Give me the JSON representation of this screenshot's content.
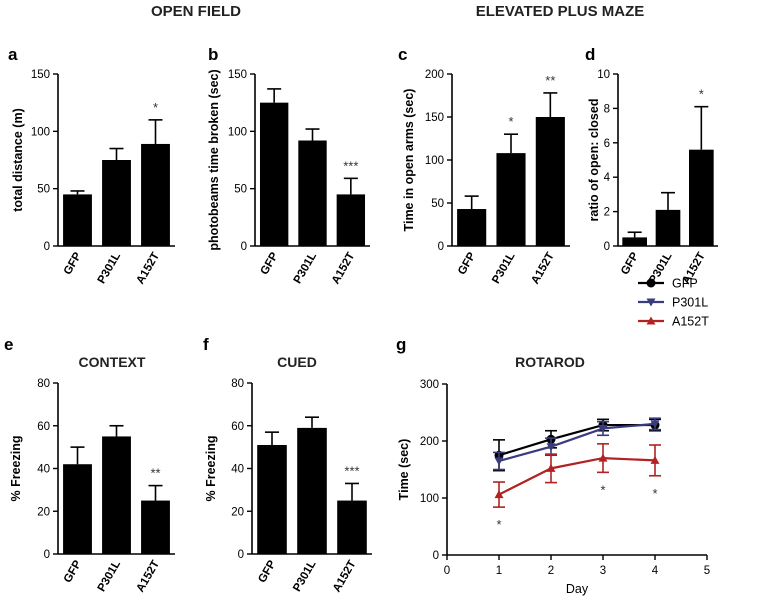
{
  "section_headers": {
    "open_field": "OPEN FIELD",
    "epm": "ELEVATED PLUS MAZE"
  },
  "colors": {
    "bar": "#000000",
    "gfp": "#000000",
    "p301l": "#3a3a7e",
    "a152t": "#b22222"
  },
  "chart_data": [
    {
      "id": "a",
      "panel_label": "a",
      "type": "bar",
      "title": "",
      "ylabel": "total distance (m)",
      "ylim": [
        0,
        150
      ],
      "yticks": [
        0,
        50,
        100,
        150
      ],
      "categories": [
        "GFP",
        "P301L",
        "A152T"
      ],
      "values": [
        45,
        75,
        89
      ],
      "errors": [
        3,
        10,
        21
      ],
      "significance": [
        "",
        "",
        "*"
      ]
    },
    {
      "id": "b",
      "panel_label": "b",
      "type": "bar",
      "title": "",
      "ylabel": "photobeams time broken (sec)",
      "ylim": [
        0,
        150
      ],
      "yticks": [
        0,
        50,
        100,
        150
      ],
      "categories": [
        "GFP",
        "P301L",
        "A152T"
      ],
      "values": [
        125,
        92,
        45
      ],
      "errors": [
        12,
        10,
        14
      ],
      "significance": [
        "",
        "",
        "***"
      ]
    },
    {
      "id": "c",
      "panel_label": "c",
      "type": "bar",
      "title": "",
      "ylabel": "Time in open arms (sec)",
      "ylim": [
        0,
        200
      ],
      "yticks": [
        0,
        50,
        100,
        150,
        200
      ],
      "categories": [
        "GFP",
        "P301L",
        "A152T"
      ],
      "values": [
        43,
        108,
        150
      ],
      "errors": [
        15,
        22,
        28
      ],
      "significance": [
        "",
        "*",
        "**"
      ]
    },
    {
      "id": "d",
      "panel_label": "d",
      "type": "bar",
      "title": "",
      "ylabel": "ratio of open: closed",
      "ylim": [
        0,
        10
      ],
      "yticks": [
        0,
        2,
        4,
        6,
        8,
        10
      ],
      "categories": [
        "GFP",
        "P301L",
        "A152T"
      ],
      "values": [
        0.5,
        2.1,
        5.6
      ],
      "errors": [
        0.3,
        1.0,
        2.5
      ],
      "significance": [
        "",
        "",
        "*"
      ]
    },
    {
      "id": "e",
      "panel_label": "e",
      "type": "bar",
      "title": "CONTEXT",
      "ylabel": "% Freezing",
      "ylim": [
        0,
        80
      ],
      "yticks": [
        0,
        20,
        40,
        60,
        80
      ],
      "categories": [
        "GFP",
        "P301L",
        "A152T"
      ],
      "values": [
        42,
        55,
        25
      ],
      "errors": [
        8,
        5,
        7
      ],
      "significance": [
        "",
        "",
        "**"
      ]
    },
    {
      "id": "f",
      "panel_label": "f",
      "type": "bar",
      "title": "CUED",
      "ylabel": "% Freezing",
      "ylim": [
        0,
        80
      ],
      "yticks": [
        0,
        20,
        40,
        60,
        80
      ],
      "categories": [
        "GFP",
        "P301L",
        "A152T"
      ],
      "values": [
        51,
        59,
        25
      ],
      "errors": [
        6,
        5,
        8
      ],
      "significance": [
        "",
        "",
        "***"
      ]
    },
    {
      "id": "g",
      "panel_label": "g",
      "type": "line",
      "title": "ROTAROD",
      "xlabel": "Day",
      "ylabel": "Time (sec)",
      "xlim": [
        0,
        5
      ],
      "xticks": [
        0,
        1,
        2,
        3,
        4,
        5
      ],
      "ylim": [
        0,
        300
      ],
      "yticks": [
        0,
        100,
        200,
        300
      ],
      "x": [
        1,
        2,
        3,
        4
      ],
      "series": [
        {
          "name": "GFP",
          "values": [
            175,
            203,
            228,
            228
          ],
          "errors": [
            27,
            15,
            10,
            10
          ],
          "marker": "circle",
          "color": "#000000"
        },
        {
          "name": "P301L",
          "values": [
            165,
            190,
            222,
            230
          ],
          "errors": [
            15,
            15,
            12,
            10
          ],
          "marker": "triangle-down",
          "color": "#3a3a7e"
        },
        {
          "name": "A152T",
          "values": [
            106,
            152,
            170,
            166
          ],
          "errors": [
            22,
            25,
            25,
            27
          ],
          "marker": "triangle-up",
          "color": "#b22222"
        }
      ],
      "significance_marks": [
        "*",
        "*",
        "*"
      ],
      "significance_days": [
        1,
        3,
        4
      ]
    }
  ]
}
